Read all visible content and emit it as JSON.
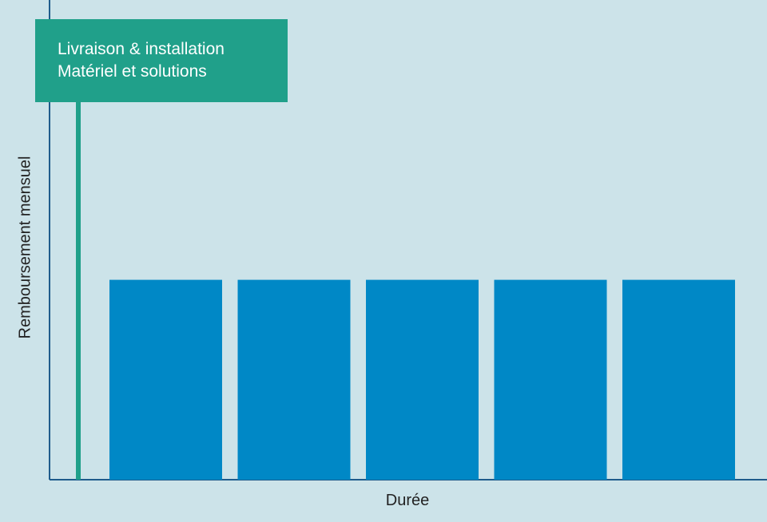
{
  "colors": {
    "background": "#cce3e9",
    "bar": "#0088c6",
    "accent": "#20a08a",
    "axis": "#1f5c8c"
  },
  "callout": {
    "lines": [
      "Livraison & installation",
      "Matériel et solutions"
    ]
  },
  "chart_data": {
    "type": "bar",
    "xlabel": "Durée",
    "ylabel": "Remboursement mensuel",
    "categories": [
      "",
      "",
      "",
      "",
      ""
    ],
    "values": [
      1,
      1,
      1,
      1,
      1
    ],
    "ylim": [
      0,
      2.4
    ],
    "marker": {
      "label": "Livraison & installation / Matériel et solutions",
      "value": 2.4
    },
    "grid": false,
    "legend": "none"
  }
}
